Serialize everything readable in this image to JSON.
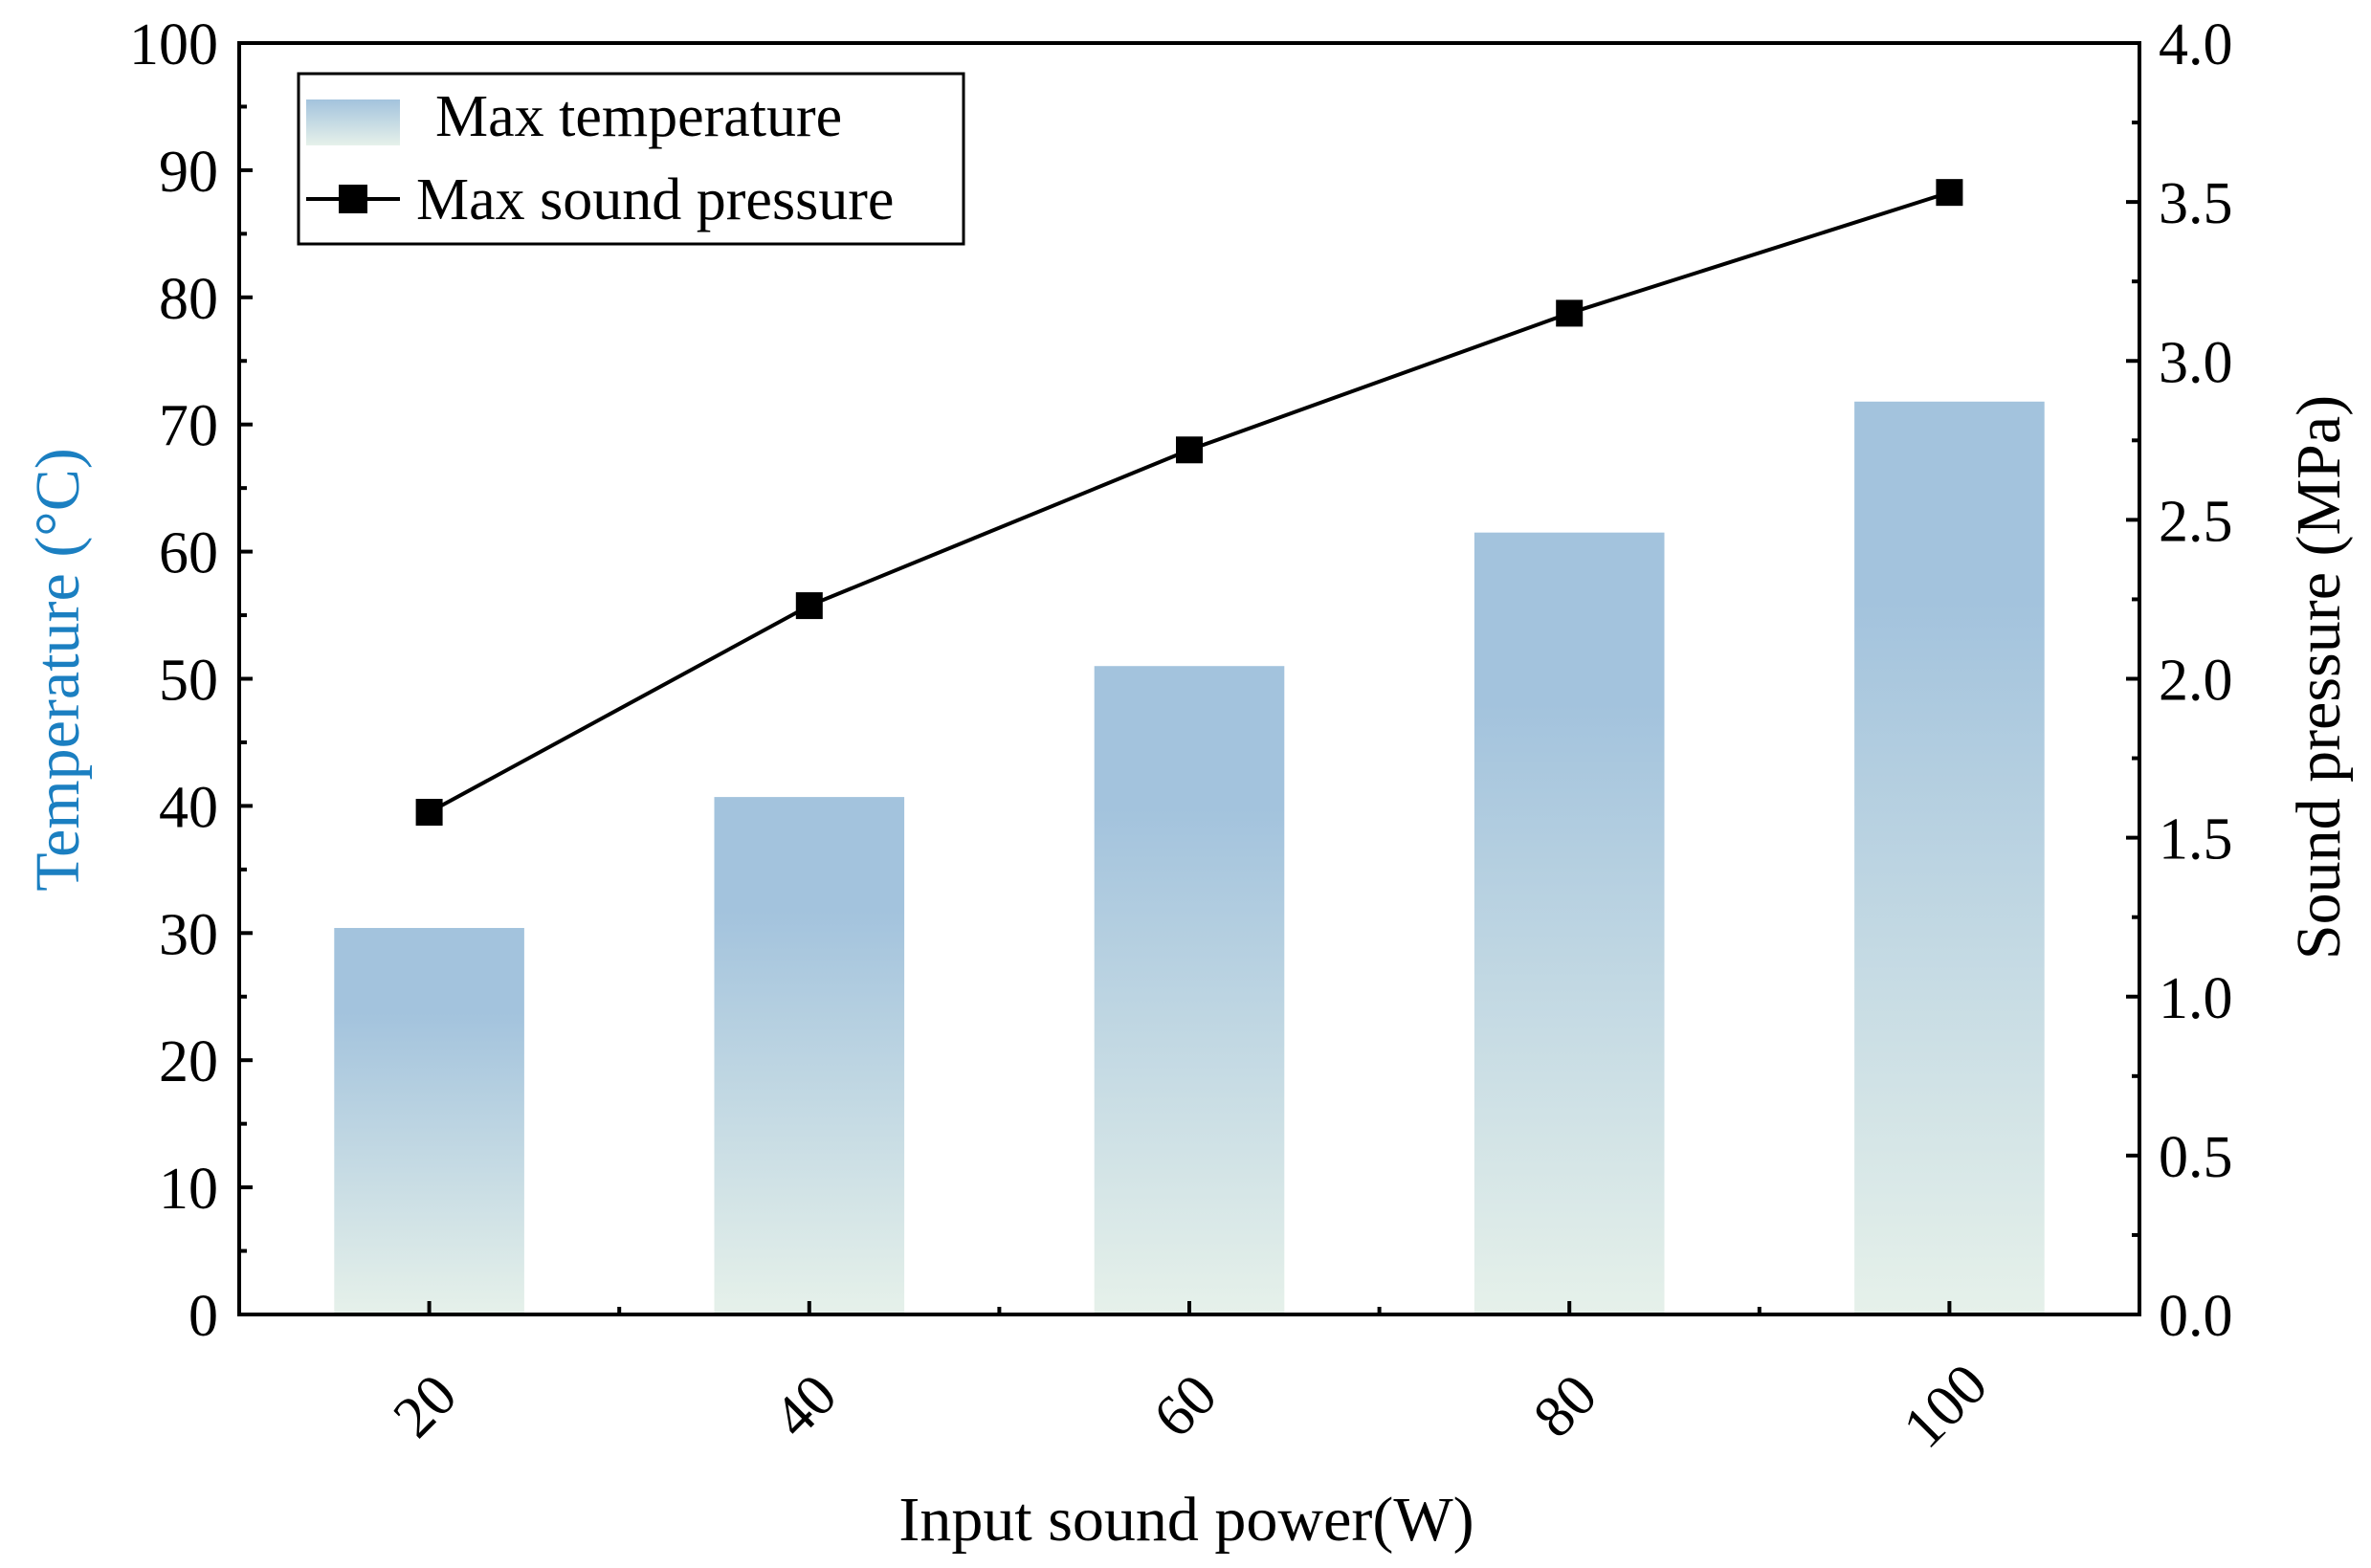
{
  "chart_data": {
    "type": "bar",
    "xlabel": "Input sound power(W)",
    "categories": [
      "20",
      "40",
      "60",
      "80",
      "100"
    ],
    "y_left": {
      "label": "Temperature (°C)",
      "range": [
        0,
        100
      ],
      "ticks": [
        "0",
        "10",
        "20",
        "30",
        "40",
        "50",
        "60",
        "70",
        "80",
        "90",
        "100"
      ],
      "label_color": "#1b7fc1"
    },
    "y_right": {
      "label": "Sound pressure (MPa)",
      "range": [
        0,
        4
      ],
      "ticks": [
        "0.0",
        "0.5",
        "1.0",
        "1.5",
        "2.0",
        "2.5",
        "3.0",
        "3.5",
        "4.0"
      ]
    },
    "series": [
      {
        "name": "Max temperature",
        "type": "bar",
        "axis": "left",
        "values": [
          30.4,
          40.7,
          51.0,
          61.5,
          71.8
        ],
        "gradient": [
          "#a3c3dd",
          "#e6f1ea"
        ]
      },
      {
        "name": "Max sound pressure",
        "type": "line",
        "axis": "right",
        "marker": "square",
        "values": [
          1.58,
          2.23,
          2.72,
          3.15,
          3.53
        ],
        "color": "#000000"
      }
    ],
    "legend": "top-left",
    "grid": false
  }
}
